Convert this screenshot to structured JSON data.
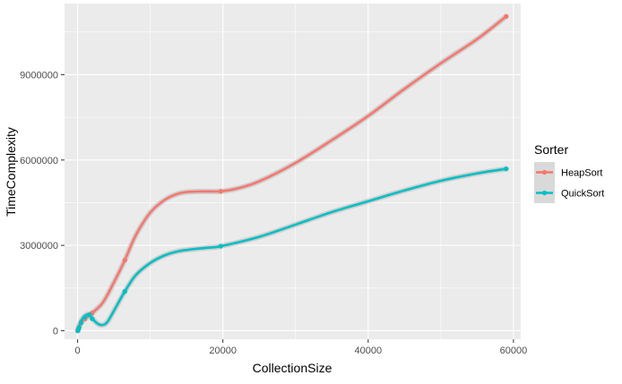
{
  "chart_data": {
    "type": "line",
    "xlabel": "CollectionSize",
    "ylabel": "TimeComplexity",
    "xlim": [
      -1800,
      61000
    ],
    "ylim": [
      -300000,
      11500000
    ],
    "x_ticks": [
      0,
      20000,
      40000,
      60000
    ],
    "x_tick_labels": [
      "0",
      "20000",
      "40000",
      "60000"
    ],
    "y_ticks": [
      0,
      3000000,
      6000000,
      9000000
    ],
    "y_tick_labels": [
      "0",
      "3000000",
      "6000000",
      "9000000"
    ],
    "grid": true,
    "legend": {
      "title": "Sorter",
      "placement": "right"
    },
    "series": [
      {
        "name": "HeapSort",
        "color": "#F8766D",
        "points": [
          [
            50,
            5000
          ],
          [
            100,
            40000
          ],
          [
            200,
            120000
          ],
          [
            500,
            310000
          ],
          [
            1000,
            410000
          ],
          [
            2000,
            620000
          ],
          [
            6500,
            2480000
          ],
          [
            19700,
            4900000
          ],
          [
            59000,
            11050000
          ]
        ],
        "curve": [
          [
            0,
            0
          ],
          [
            500,
            290000
          ],
          [
            1000,
            410000
          ],
          [
            2000,
            620000
          ],
          [
            3500,
            1000000
          ],
          [
            5000,
            1700000
          ],
          [
            6500,
            2480000
          ],
          [
            8000,
            3350000
          ],
          [
            10000,
            4150000
          ],
          [
            12000,
            4600000
          ],
          [
            14000,
            4830000
          ],
          [
            16000,
            4890000
          ],
          [
            18000,
            4895000
          ],
          [
            19700,
            4900000
          ],
          [
            22000,
            5000000
          ],
          [
            25000,
            5250000
          ],
          [
            30000,
            5900000
          ],
          [
            35000,
            6700000
          ],
          [
            40000,
            7550000
          ],
          [
            45000,
            8500000
          ],
          [
            50000,
            9400000
          ],
          [
            55000,
            10250000
          ],
          [
            59000,
            11050000
          ]
        ]
      },
      {
        "name": "QuickSort",
        "color": "#00BFC4",
        "points": [
          [
            50,
            3000
          ],
          [
            100,
            40000
          ],
          [
            200,
            100000
          ],
          [
            500,
            280000
          ],
          [
            1000,
            480000
          ],
          [
            1600,
            560000
          ],
          [
            2000,
            420000
          ],
          [
            6500,
            1380000
          ],
          [
            19700,
            2970000
          ],
          [
            59000,
            5690000
          ]
        ],
        "curve": [
          [
            0,
            0
          ],
          [
            500,
            350000
          ],
          [
            1000,
            520000
          ],
          [
            1600,
            580000
          ],
          [
            2000,
            450000
          ],
          [
            2500,
            300000
          ],
          [
            3200,
            200000
          ],
          [
            4000,
            280000
          ],
          [
            5000,
            700000
          ],
          [
            6500,
            1380000
          ],
          [
            8000,
            1950000
          ],
          [
            10000,
            2380000
          ],
          [
            12000,
            2650000
          ],
          [
            14000,
            2800000
          ],
          [
            16000,
            2870000
          ],
          [
            18000,
            2920000
          ],
          [
            19700,
            2970000
          ],
          [
            25000,
            3300000
          ],
          [
            30000,
            3730000
          ],
          [
            35000,
            4170000
          ],
          [
            40000,
            4550000
          ],
          [
            45000,
            4930000
          ],
          [
            50000,
            5270000
          ],
          [
            55000,
            5530000
          ],
          [
            59000,
            5690000
          ]
        ]
      }
    ]
  }
}
